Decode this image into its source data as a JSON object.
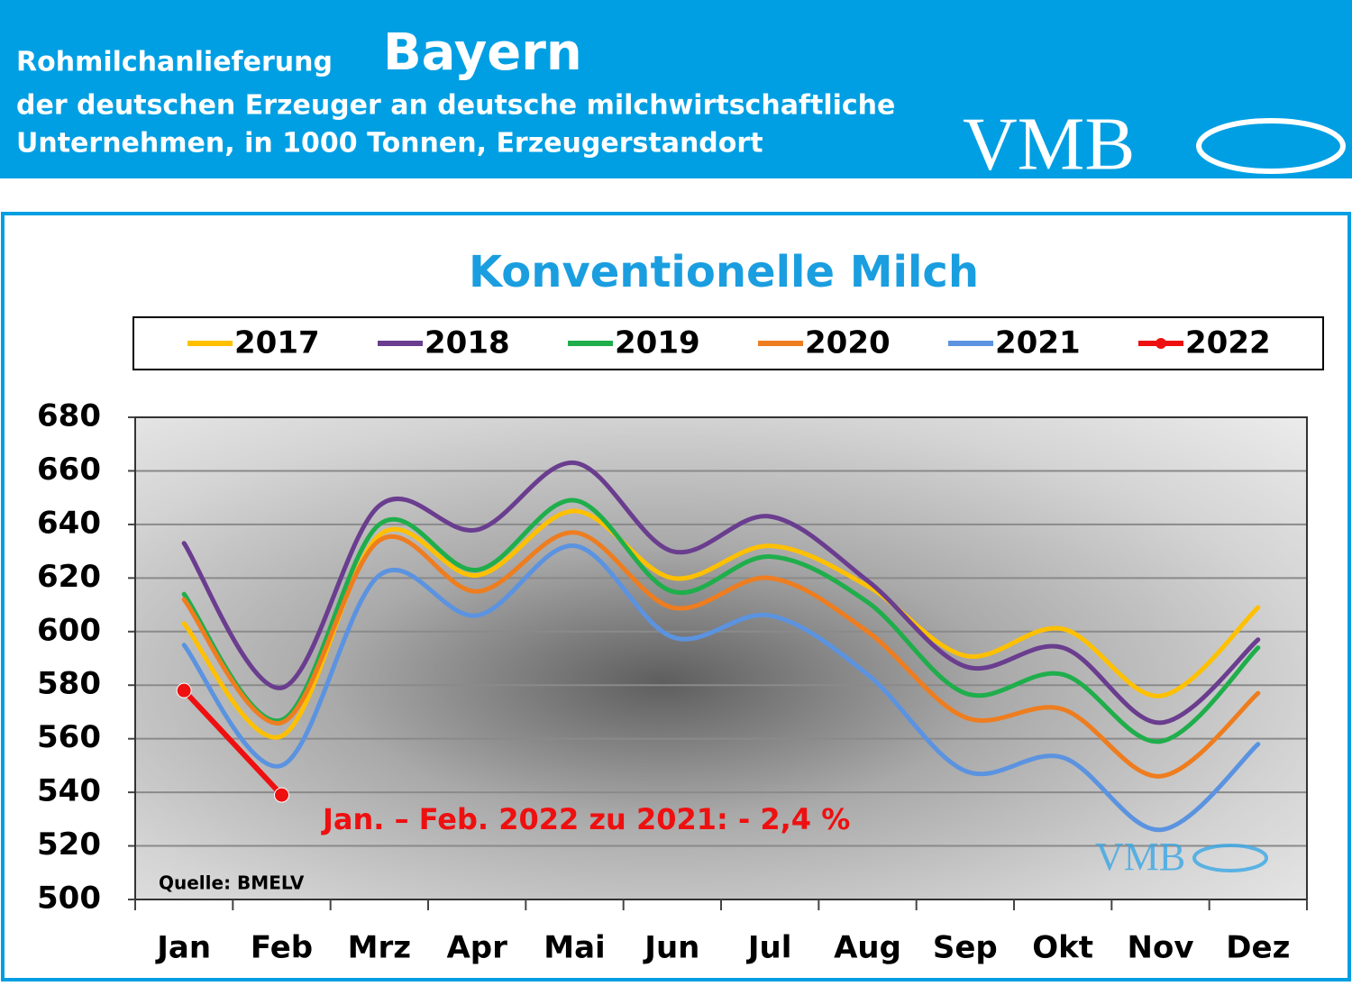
{
  "header": {
    "line1": "Rohmilchanlieferung",
    "region": "Bayern",
    "line2": "der deutschen Erzeuger an deutsche milchwirtschaftliche",
    "line3": "Unternehmen, in 1000 Tonnen, Erzeugerstandort",
    "logo": "VMB"
  },
  "chart_data": {
    "type": "line",
    "title": "Konventionelle Milch",
    "categories": [
      "Jan",
      "Feb",
      "Mrz",
      "Apr",
      "Mai",
      "Jun",
      "Jul",
      "Aug",
      "Sep",
      "Okt",
      "Nov",
      "Dez"
    ],
    "series": [
      {
        "name": "2017",
        "color": "#ffc000",
        "values": [
          603,
          561,
          636,
          621,
          645,
          620,
          632,
          617,
          591,
          601,
          576,
          609
        ]
      },
      {
        "name": "2018",
        "color": "#6a3d8f",
        "values": [
          633,
          579,
          647,
          638,
          663,
          630,
          643,
          619,
          587,
          594,
          566,
          597
        ]
      },
      {
        "name": "2019",
        "color": "#1fae4b",
        "values": [
          614,
          567,
          640,
          623,
          649,
          615,
          628,
          611,
          577,
          584,
          559,
          594
        ]
      },
      {
        "name": "2020",
        "color": "#ee7d1f",
        "values": [
          612,
          566,
          634,
          615,
          637,
          609,
          620,
          600,
          568,
          571,
          546,
          577
        ]
      },
      {
        "name": "2021",
        "color": "#5b93e0",
        "values": [
          595,
          550,
          621,
          606,
          632,
          598,
          606,
          584,
          548,
          553,
          526,
          558
        ]
      },
      {
        "name": "2022",
        "color": "#ee1010",
        "markers": true,
        "values": [
          578,
          539,
          null,
          null,
          null,
          null,
          null,
          null,
          null,
          null,
          null,
          null
        ]
      }
    ],
    "ylim": [
      500,
      680
    ],
    "yticks": [
      500,
      520,
      540,
      560,
      580,
      600,
      620,
      640,
      660,
      680
    ],
    "grid": true,
    "annotation": "Jan. – Feb. 2022 zu 2021: - 2,4 %",
    "source": "Quelle: BMELV",
    "watermark": "VMB"
  }
}
